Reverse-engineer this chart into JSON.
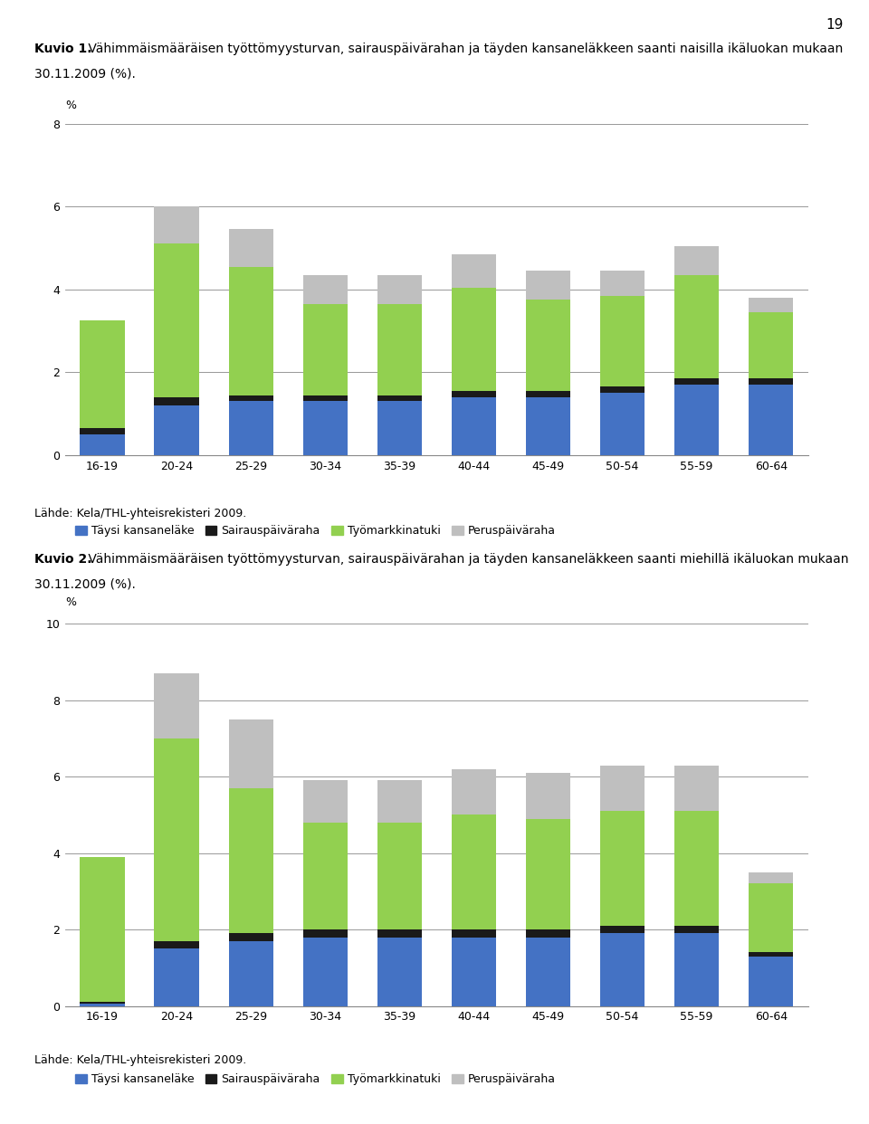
{
  "categories": [
    "16-19",
    "20-24",
    "25-29",
    "30-34",
    "35-39",
    "40-44",
    "45-49",
    "50-54",
    "55-59",
    "60-64"
  ],
  "chart1": {
    "title_line1": "Kuvio 1.",
    "title_line1_rest": " Vähimmäismääräisen työttömyysturvan, sairauspäivärahan ja täyden kansaneläkkeen saanti naisilla ikäluokan mukaan",
    "title_line2": "30.11.2009 (%).",
    "taysi_kansanelake": [
      0.5,
      1.2,
      1.3,
      1.3,
      1.3,
      1.4,
      1.4,
      1.5,
      1.7,
      1.7
    ],
    "sairauspaivaraha": [
      0.15,
      0.2,
      0.15,
      0.15,
      0.15,
      0.15,
      0.15,
      0.15,
      0.15,
      0.15
    ],
    "tyomarkkinatuki": [
      2.6,
      3.7,
      3.1,
      2.2,
      2.2,
      2.5,
      2.2,
      2.2,
      2.5,
      1.6
    ],
    "peruspaivaraha": [
      0.0,
      0.9,
      0.9,
      0.7,
      0.7,
      0.8,
      0.7,
      0.6,
      0.7,
      0.35
    ],
    "ylim": [
      0,
      8
    ],
    "yticks": [
      0,
      2,
      4,
      6,
      8
    ]
  },
  "chart2": {
    "title_line1": "Kuvio 2.",
    "title_line1_rest": " Vähimmäismääräisen työttömyysturvan, sairauspäivärahan ja täyden kansaneläkkeen saanti miehillä ikäluokan mukaan",
    "title_line2": "30.11.2009 (%).",
    "taysi_kansanelake": [
      0.05,
      1.5,
      1.7,
      1.8,
      1.8,
      1.8,
      1.8,
      1.9,
      1.9,
      1.3
    ],
    "sairauspaivaraha": [
      0.05,
      0.2,
      0.2,
      0.2,
      0.2,
      0.2,
      0.2,
      0.2,
      0.2,
      0.1
    ],
    "tyomarkkinatuki": [
      3.8,
      5.3,
      3.8,
      2.8,
      2.8,
      3.0,
      2.9,
      3.0,
      3.0,
      1.8
    ],
    "peruspaivaraha": [
      0.0,
      1.7,
      1.8,
      1.1,
      1.1,
      1.2,
      1.2,
      1.2,
      1.2,
      0.3
    ],
    "ylim": [
      0,
      10
    ],
    "yticks": [
      0,
      2,
      4,
      6,
      8,
      10
    ]
  },
  "color_taysi": "#4472C4",
  "color_sairauspaivaraha": "#1a1a1a",
  "color_tyomarkkinatuki": "#92D050",
  "color_peruspaivaraha": "#BFBFBF",
  "legend_labels": [
    "Täysi kansaneläke",
    "Sairauspäiväraha",
    "Työmarkkinatuki",
    "Peruspäiväraha"
  ],
  "lahde_text": "Lähde: Kela/THL-yhteisrekisteri 2009.",
  "page_number": "19",
  "background_color": "#FFFFFF",
  "bar_width": 0.6
}
